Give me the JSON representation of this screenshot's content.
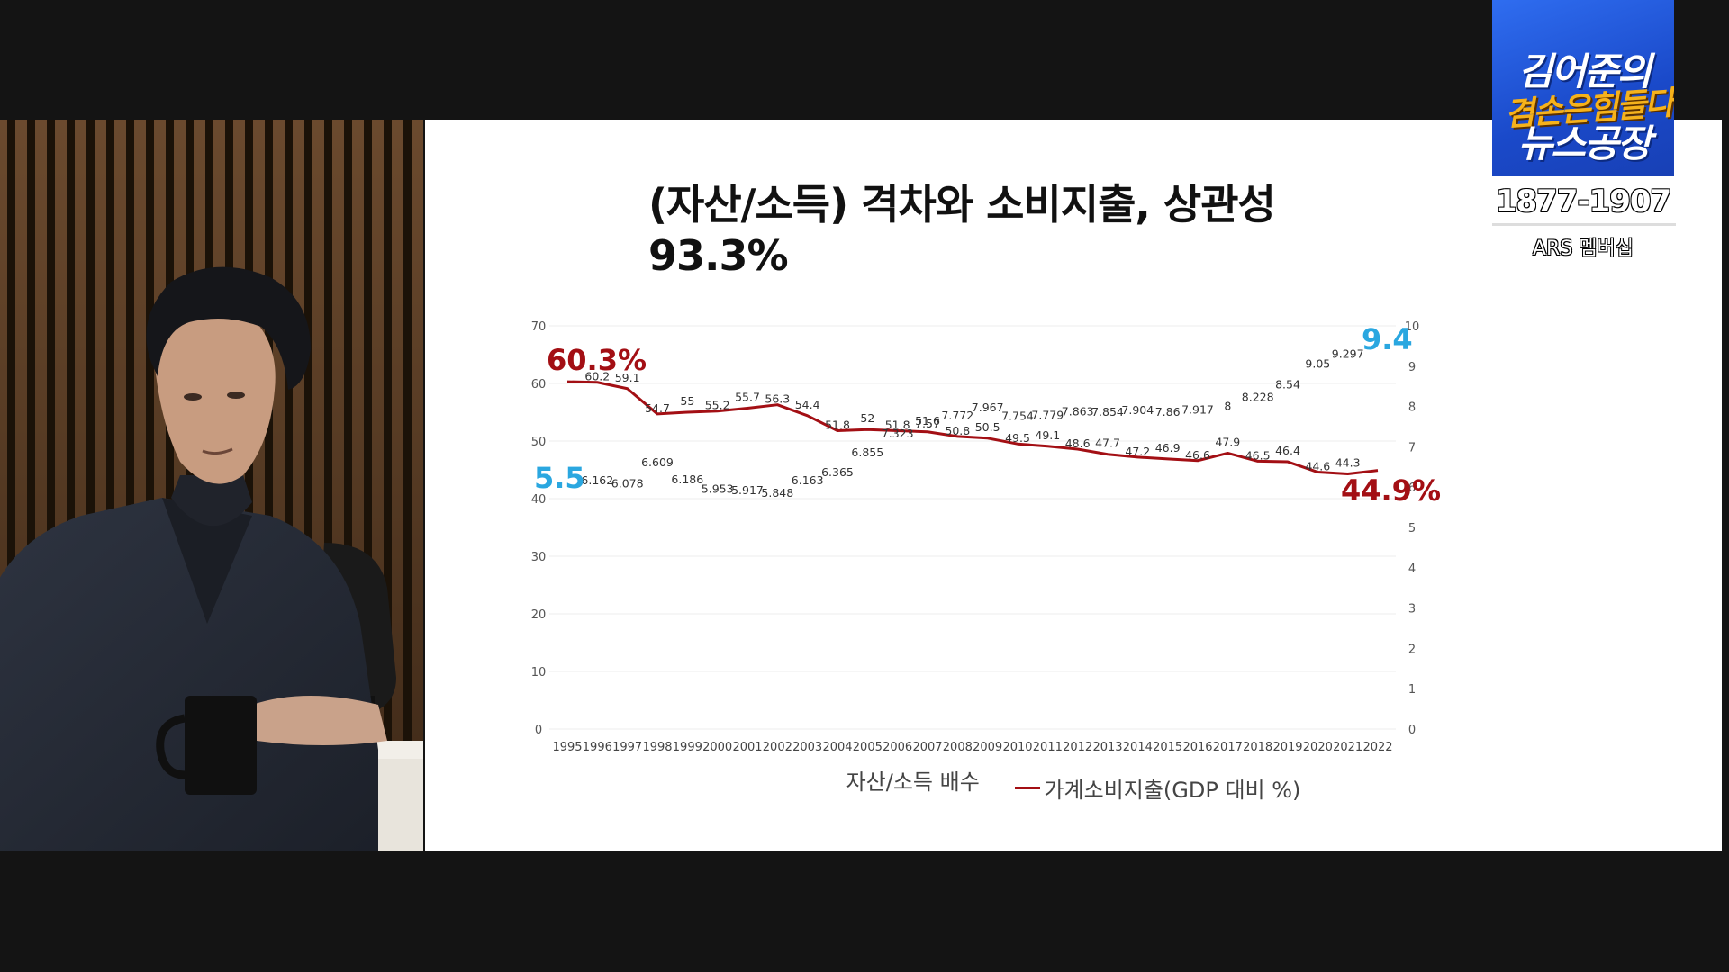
{
  "show": {
    "logo_line1": "김어준의",
    "logo_line2": "겸손은힘들다",
    "logo_line3": "뉴스공장",
    "phone": "1877-1907",
    "ars_label": "ARS 멤버십"
  },
  "colors": {
    "series_line": "#a30f14",
    "callout_blue": "#2aa7e0",
    "callout_red": "#a30f14",
    "gridline": "#ececec"
  },
  "chart_data": {
    "type": "line",
    "title": "(자산/소득) 격차와 소비지출, 상관성 93.3%",
    "x": [
      "1995",
      "1996",
      "1997",
      "1998",
      "1999",
      "2000",
      "2001",
      "2002",
      "2003",
      "2004",
      "2005",
      "2006",
      "2007",
      "2008",
      "2009",
      "2010",
      "2011",
      "2012",
      "2013",
      "2014",
      "2015",
      "2016",
      "2017",
      "2018",
      "2019",
      "2020",
      "2021",
      "2022"
    ],
    "left_axis": {
      "ylim": [
        0,
        70
      ],
      "ticks": [
        "0",
        "10",
        "20",
        "30",
        "40",
        "50",
        "60",
        "70"
      ]
    },
    "right_axis": {
      "ylim": [
        0,
        10
      ],
      "ticks": [
        "0",
        "1",
        "2",
        "3",
        "4",
        "5",
        "6",
        "7",
        "8",
        "9",
        "10"
      ]
    },
    "grid": true,
    "legend_position": "bottom",
    "series": [
      {
        "name": "자산/소득 배수",
        "axis": "right",
        "visible_line": false,
        "values": [
          5.5,
          6.162,
          6.078,
          6.609,
          6.186,
          5.953,
          5.917,
          5.848,
          6.163,
          6.365,
          6.855,
          7.323,
          7.57,
          7.772,
          7.967,
          7.754,
          7.779,
          7.863,
          7.854,
          7.904,
          7.86,
          7.917,
          8,
          8.228,
          8.54,
          9.05,
          9.297,
          9.4
        ],
        "labels": [
          "",
          "6.162",
          "6.078",
          "6.609",
          "6.186",
          "5.953",
          "5.917",
          "5.848",
          "6.163",
          "6.365",
          "6.855",
          "7.323",
          "7.57",
          "7.772",
          "7.967",
          "7.754",
          "7.779",
          "7.863",
          "7.854",
          "7.904",
          "7.86",
          "7.917",
          "8",
          "8.228",
          "8.54",
          "9.05",
          "9.297",
          ""
        ]
      },
      {
        "name": "가계소비지출(GDP 대비 %)",
        "axis": "left",
        "values": [
          60.3,
          60.2,
          59.1,
          54.7,
          55,
          55.2,
          55.7,
          56.3,
          54.4,
          51.8,
          52,
          51.8,
          51.6,
          50.8,
          50.5,
          49.5,
          49.1,
          48.6,
          47.7,
          47.2,
          46.9,
          46.6,
          47.9,
          46.5,
          46.4,
          44.6,
          44.3,
          44.9
        ],
        "labels": [
          "",
          "60.2",
          "59.1",
          "54.7",
          "55",
          "55.2",
          "55.7",
          "56.3",
          "54.4",
          "51.8",
          "52",
          "51.8",
          "51.6",
          "50.8",
          "50.5",
          "49.5",
          "49.1",
          "48.6",
          "47.7",
          "47.2",
          "46.9",
          "46.6",
          "47.9",
          "46.5",
          "46.4",
          "44.6",
          "44.3",
          ""
        ]
      }
    ],
    "callouts": [
      {
        "text": "5.5",
        "color": "blue"
      },
      {
        "text": "60.3%",
        "color": "red"
      },
      {
        "text": "9.4",
        "color": "blue"
      },
      {
        "text": "44.9%",
        "color": "red"
      }
    ]
  }
}
